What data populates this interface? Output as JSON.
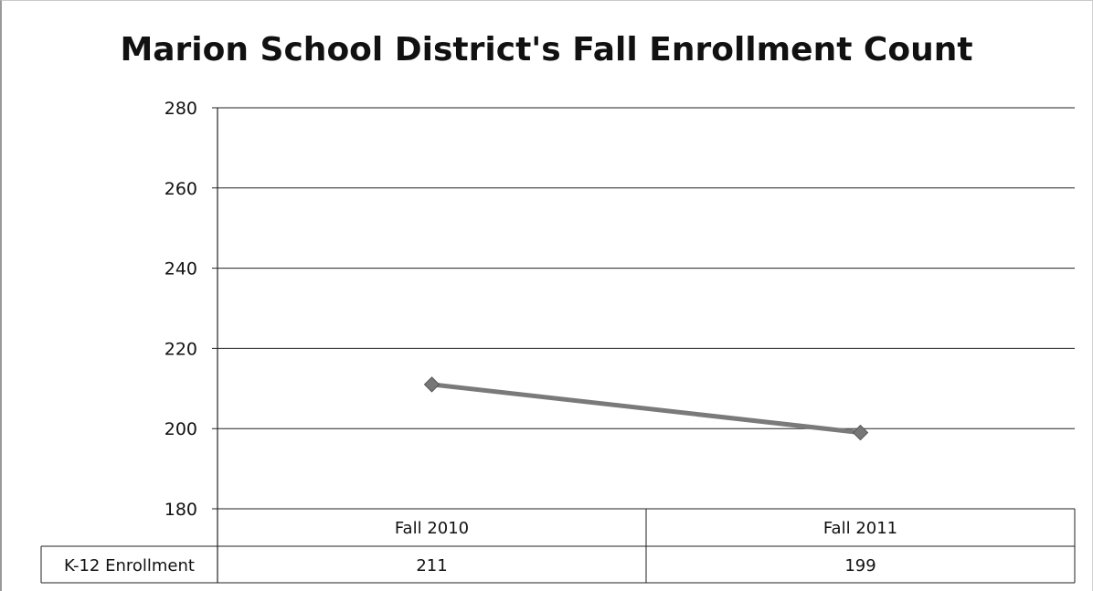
{
  "chart_data": {
    "type": "line",
    "title": "Marion School District's Fall Enrollment Count",
    "categories": [
      "Fall 2010",
      "Fall 2011"
    ],
    "series": [
      {
        "name": "K-12 Enrollment",
        "values": [
          211,
          199
        ]
      }
    ],
    "ylim": [
      180,
      280
    ],
    "yticks": [
      280,
      260,
      240,
      220,
      200,
      180
    ],
    "grid": true,
    "data_table": true,
    "colors": {
      "line": "#7a7a7a",
      "marker": "#777777",
      "grid": "#222222",
      "text": "#111111"
    }
  }
}
